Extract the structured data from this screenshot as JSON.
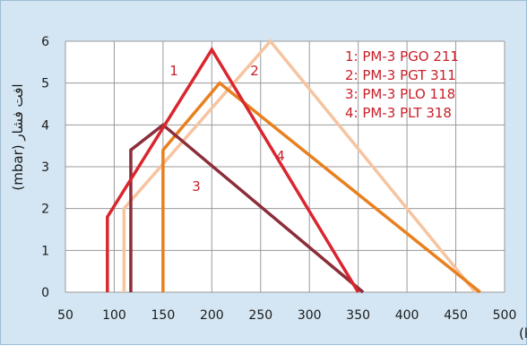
{
  "chart_data": {
    "type": "line",
    "title": "",
    "xlabel": "ظرفیت (kW)",
    "ylabel": "افت فشار (mbar)",
    "xlim": [
      50,
      500
    ],
    "ylim": [
      0,
      6
    ],
    "x_ticks": [
      "50",
      "100",
      "150",
      "200",
      "250",
      "300",
      "350",
      "400",
      "450",
      "500"
    ],
    "y_ticks": [
      "0",
      "1",
      "2",
      "3",
      "4",
      "5",
      "6"
    ],
    "grid": true,
    "legend": {
      "placement": "top-right",
      "entries": [
        "1: PM-3 PGO 211",
        "2: PM-3 PGT 311",
        "3: PM-3 PLO 118",
        "4: PM-3 PLT 318"
      ]
    },
    "series": [
      {
        "label": "1",
        "color": "#d9262e",
        "points": [
          [
            93,
            0
          ],
          [
            93,
            1.8
          ],
          [
            200,
            5.8
          ],
          [
            350,
            0
          ]
        ]
      },
      {
        "label": "2",
        "color": "#f6c4a0",
        "points": [
          [
            110,
            0
          ],
          [
            110,
            2.0
          ],
          [
            260,
            6.0
          ],
          [
            470,
            0
          ]
        ]
      },
      {
        "label": "3",
        "color": "#8b2e3a",
        "points": [
          [
            117,
            0
          ],
          [
            117,
            3.4
          ],
          [
            150,
            4.0
          ],
          [
            355,
            0
          ]
        ]
      },
      {
        "label": "4",
        "color": "#e8801f",
        "points": [
          [
            150,
            0
          ],
          [
            150,
            3.4
          ],
          [
            208,
            5.0
          ],
          [
            475,
            0
          ]
        ]
      }
    ]
  }
}
